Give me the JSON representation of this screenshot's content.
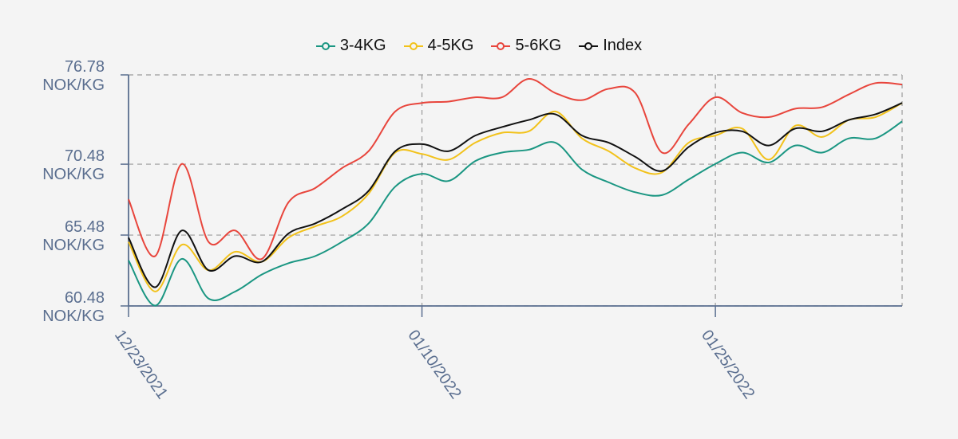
{
  "chart_data": {
    "type": "line",
    "xlabel": "",
    "ylabel": "",
    "ylim": [
      60.48,
      76.78
    ],
    "y_ticks": [
      {
        "value": 76.78,
        "line1": "76.78",
        "line2": "NOK/KG"
      },
      {
        "value": 70.48,
        "line1": "70.48",
        "line2": "NOK/KG"
      },
      {
        "value": 65.48,
        "line1": "65.48",
        "line2": "NOK/KG"
      },
      {
        "value": 60.48,
        "line1": "60.48",
        "line2": "NOK/KG"
      }
    ],
    "x_ticks": [
      {
        "index": 0,
        "label": "12/23/2021"
      },
      {
        "index": 11,
        "label": "01/10/2022"
      },
      {
        "index": 22,
        "label": "01/25/2022"
      }
    ],
    "x_count": 30,
    "grid": true,
    "legend_position": "top",
    "series": [
      {
        "name": "3-4KG",
        "color": "#1a9682",
        "values": [
          63.7,
          60.5,
          63.8,
          61.0,
          61.5,
          62.7,
          63.5,
          64.0,
          65.0,
          66.3,
          68.9,
          69.8,
          69.3,
          70.7,
          71.3,
          71.5,
          72.0,
          70.1,
          69.2,
          68.5,
          68.3,
          69.4,
          70.5,
          71.3,
          70.6,
          71.8,
          71.3,
          72.3,
          72.3,
          73.5
        ]
      },
      {
        "name": "4-5KG",
        "color": "#f2c21b",
        "values": [
          65.0,
          61.5,
          64.8,
          63.0,
          64.3,
          63.6,
          65.3,
          66.1,
          66.8,
          68.4,
          71.3,
          71.2,
          70.8,
          72.0,
          72.7,
          72.8,
          74.2,
          72.3,
          71.4,
          70.2,
          69.9,
          72.0,
          72.5,
          73.0,
          70.8,
          73.2,
          72.4,
          73.6,
          73.8,
          74.8
        ]
      },
      {
        "name": "5-6KG",
        "color": "#e8453c",
        "values": [
          68.0,
          64.0,
          70.5,
          65.0,
          65.8,
          63.8,
          67.8,
          68.8,
          70.2,
          71.4,
          74.2,
          74.8,
          74.9,
          75.2,
          75.2,
          76.5,
          75.5,
          75.0,
          75.8,
          75.5,
          71.3,
          73.3,
          75.2,
          74.1,
          73.8,
          74.4,
          74.5,
          75.4,
          76.2,
          76.1
        ]
      },
      {
        "name": "Index",
        "color": "#111111",
        "values": [
          65.3,
          61.8,
          65.8,
          63.0,
          64.0,
          63.6,
          65.6,
          66.3,
          67.3,
          68.6,
          71.4,
          71.9,
          71.4,
          72.5,
          73.1,
          73.6,
          74.0,
          72.5,
          72.0,
          71.0,
          70.0,
          71.7,
          72.7,
          72.8,
          71.8,
          73.0,
          72.8,
          73.6,
          74.0,
          74.8
        ]
      }
    ]
  }
}
